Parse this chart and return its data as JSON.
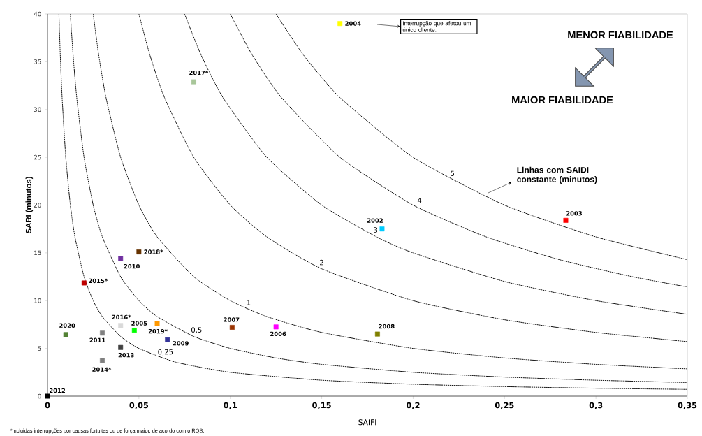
{
  "chart_data": {
    "type": "scatter",
    "xlabel": "SAIFI",
    "ylabel": "SARI (minutos)",
    "xlim": [
      0,
      0.35
    ],
    "ylim": [
      0,
      40
    ],
    "xticks": [
      0,
      {
        "value": 0.05,
        "label": "0,05"
      },
      {
        "value": 0.1,
        "label": "0,1"
      },
      {
        "value": 0.15,
        "label": "0,15"
      },
      {
        "value": 0.2,
        "label": "0,2"
      },
      {
        "value": 0.25,
        "label": "0,25"
      },
      {
        "value": 0.3,
        "label": "0,3"
      },
      {
        "value": 0.35,
        "label": "0,35"
      }
    ],
    "yticks": [
      0,
      5,
      10,
      15,
      20,
      25,
      30,
      35,
      40
    ],
    "marker": "square",
    "annotations": [
      "Interrupção que afetou um único cliente.",
      "MENOR FIABILIDADE",
      "MAIOR FIABILIDADE",
      "Linhas com SAIDI constante (minutos)",
      "*Incluidas interrupções por causas fortuitas ou de força maior, de acordo com o RQS."
    ],
    "series": [
      {
        "name": "0,25",
        "type": "line",
        "marker": "none",
        "line_style": "dotted",
        "color": "#000000",
        "x": [
          0.00625,
          0.007,
          0.008,
          0.01,
          0.0125,
          0.015,
          0.02,
          0.025,
          0.03,
          0.04,
          0.05,
          0.07,
          0.1,
          0.15,
          0.2,
          0.25,
          0.3,
          0.35
        ],
        "values": [
          40,
          35.71,
          31.25,
          25,
          20,
          16.67,
          12.5,
          10,
          8.33,
          6.25,
          5,
          3.57,
          2.5,
          1.67,
          1.25,
          1,
          0.83,
          0.71
        ]
      },
      {
        "name": "0,5",
        "type": "line",
        "marker": "none",
        "line_style": "dotted",
        "color": "#000000",
        "x": [
          0.0125,
          0.014,
          0.016,
          0.02,
          0.025,
          0.03,
          0.04,
          0.05,
          0.06,
          0.08,
          0.1,
          0.125,
          0.15,
          0.2,
          0.25,
          0.3,
          0.35
        ],
        "values": [
          40,
          35.71,
          31.25,
          25,
          20,
          16.67,
          12.5,
          10,
          8.33,
          6.25,
          5,
          4,
          3.33,
          2.5,
          2,
          1.67,
          1.43
        ]
      },
      {
        "name": "1",
        "type": "line",
        "marker": "none",
        "line_style": "dotted",
        "color": "#000000",
        "x": [
          0.025,
          0.028,
          0.032,
          0.04,
          0.05,
          0.06,
          0.08,
          0.1,
          0.12,
          0.15,
          0.2,
          0.25,
          0.3,
          0.35
        ],
        "values": [
          40,
          35.71,
          31.25,
          25,
          20,
          16.67,
          12.5,
          10,
          8.33,
          6.67,
          5,
          4,
          3.33,
          2.86
        ]
      },
      {
        "name": "2",
        "type": "line",
        "marker": "none",
        "line_style": "dotted",
        "color": "#000000",
        "x": [
          0.05,
          0.056,
          0.064,
          0.08,
          0.1,
          0.12,
          0.15,
          0.2,
          0.25,
          0.3,
          0.35
        ],
        "values": [
          40,
          35.71,
          31.25,
          25,
          20,
          16.67,
          13.33,
          10,
          8,
          6.67,
          5.71
        ]
      },
      {
        "name": "3",
        "type": "line",
        "marker": "none",
        "line_style": "dotted",
        "color": "#000000",
        "x": [
          0.075,
          0.084,
          0.096,
          0.12,
          0.15,
          0.18,
          0.2,
          0.25,
          0.3,
          0.35
        ],
        "values": [
          40,
          35.71,
          31.25,
          25,
          20,
          16.67,
          15,
          12,
          10,
          8.57
        ]
      },
      {
        "name": "4",
        "type": "line",
        "marker": "none",
        "line_style": "dotted",
        "color": "#000000",
        "x": [
          0.1,
          0.112,
          0.128,
          0.16,
          0.2,
          0.24,
          0.28,
          0.32,
          0.35
        ],
        "values": [
          40,
          35.71,
          31.25,
          25,
          20,
          16.67,
          14.29,
          12.5,
          11.43
        ]
      },
      {
        "name": "5",
        "type": "line",
        "marker": "none",
        "line_style": "dotted",
        "color": "#000000",
        "x": [
          0.125,
          0.14,
          0.16,
          0.2,
          0.25,
          0.3,
          0.35
        ],
        "values": [
          40,
          35.71,
          31.25,
          25,
          20,
          16.67,
          14.29
        ]
      },
      {
        "name": "2002",
        "color": "#00ccff",
        "x": [
          0.183
        ],
        "values": [
          17.5
        ]
      },
      {
        "name": "2003",
        "color": "#ff0000",
        "x": [
          0.2835
        ],
        "values": [
          18.4
        ]
      },
      {
        "name": "2004",
        "color": "#ffff00",
        "x": [
          0.16
        ],
        "values": [
          39
        ]
      },
      {
        "name": "2005",
        "color": "#00ff00",
        "x": [
          0.0475
        ],
        "values": [
          6.9
        ]
      },
      {
        "name": "2006",
        "color": "#ff00ff",
        "x": [
          0.125
        ],
        "values": [
          7.25
        ]
      },
      {
        "name": "2007",
        "color": "#993300",
        "x": [
          0.101
        ],
        "values": [
          7.2
        ]
      },
      {
        "name": "2008",
        "color": "#808000",
        "x": [
          0.1805
        ],
        "values": [
          6.5
        ]
      },
      {
        "name": "2009",
        "color": "#333399",
        "x": [
          0.0656
        ],
        "values": [
          5.9
        ]
      },
      {
        "name": "2010",
        "color": "#7030a0",
        "x": [
          0.04
        ],
        "values": [
          14.4
        ]
      },
      {
        "name": "2011",
        "color": "#808080",
        "x": [
          0.03
        ],
        "values": [
          6.6
        ]
      },
      {
        "name": "2012",
        "color": "#000000",
        "x": [
          0
        ],
        "values": [
          0
        ]
      },
      {
        "name": "2013",
        "color": "#404040",
        "x": [
          0.04
        ],
        "values": [
          5.1
        ]
      },
      {
        "name": "2014*",
        "color": "#7f7f7f",
        "x": [
          0.03
        ],
        "values": [
          3.75
        ]
      },
      {
        "name": "2015*",
        "color": "#c00000",
        "x": [
          0.02
        ],
        "values": [
          11.85
        ]
      },
      {
        "name": "2016*",
        "color": "#d9d9d9",
        "x": [
          0.04
        ],
        "values": [
          7.4
        ]
      },
      {
        "name": "2017*",
        "color": "#a9c79a",
        "x": [
          0.08
        ],
        "values": [
          32.9
        ]
      },
      {
        "name": "2018*",
        "color": "#663300",
        "x": [
          0.05
        ],
        "values": [
          15.1
        ]
      },
      {
        "name": "2019*",
        "color": "#ff9900",
        "x": [
          0.06
        ],
        "values": [
          7.6
        ]
      },
      {
        "name": "2020",
        "color": "#548235",
        "x": [
          0.01
        ],
        "values": [
          6.45
        ]
      }
    ]
  }
}
